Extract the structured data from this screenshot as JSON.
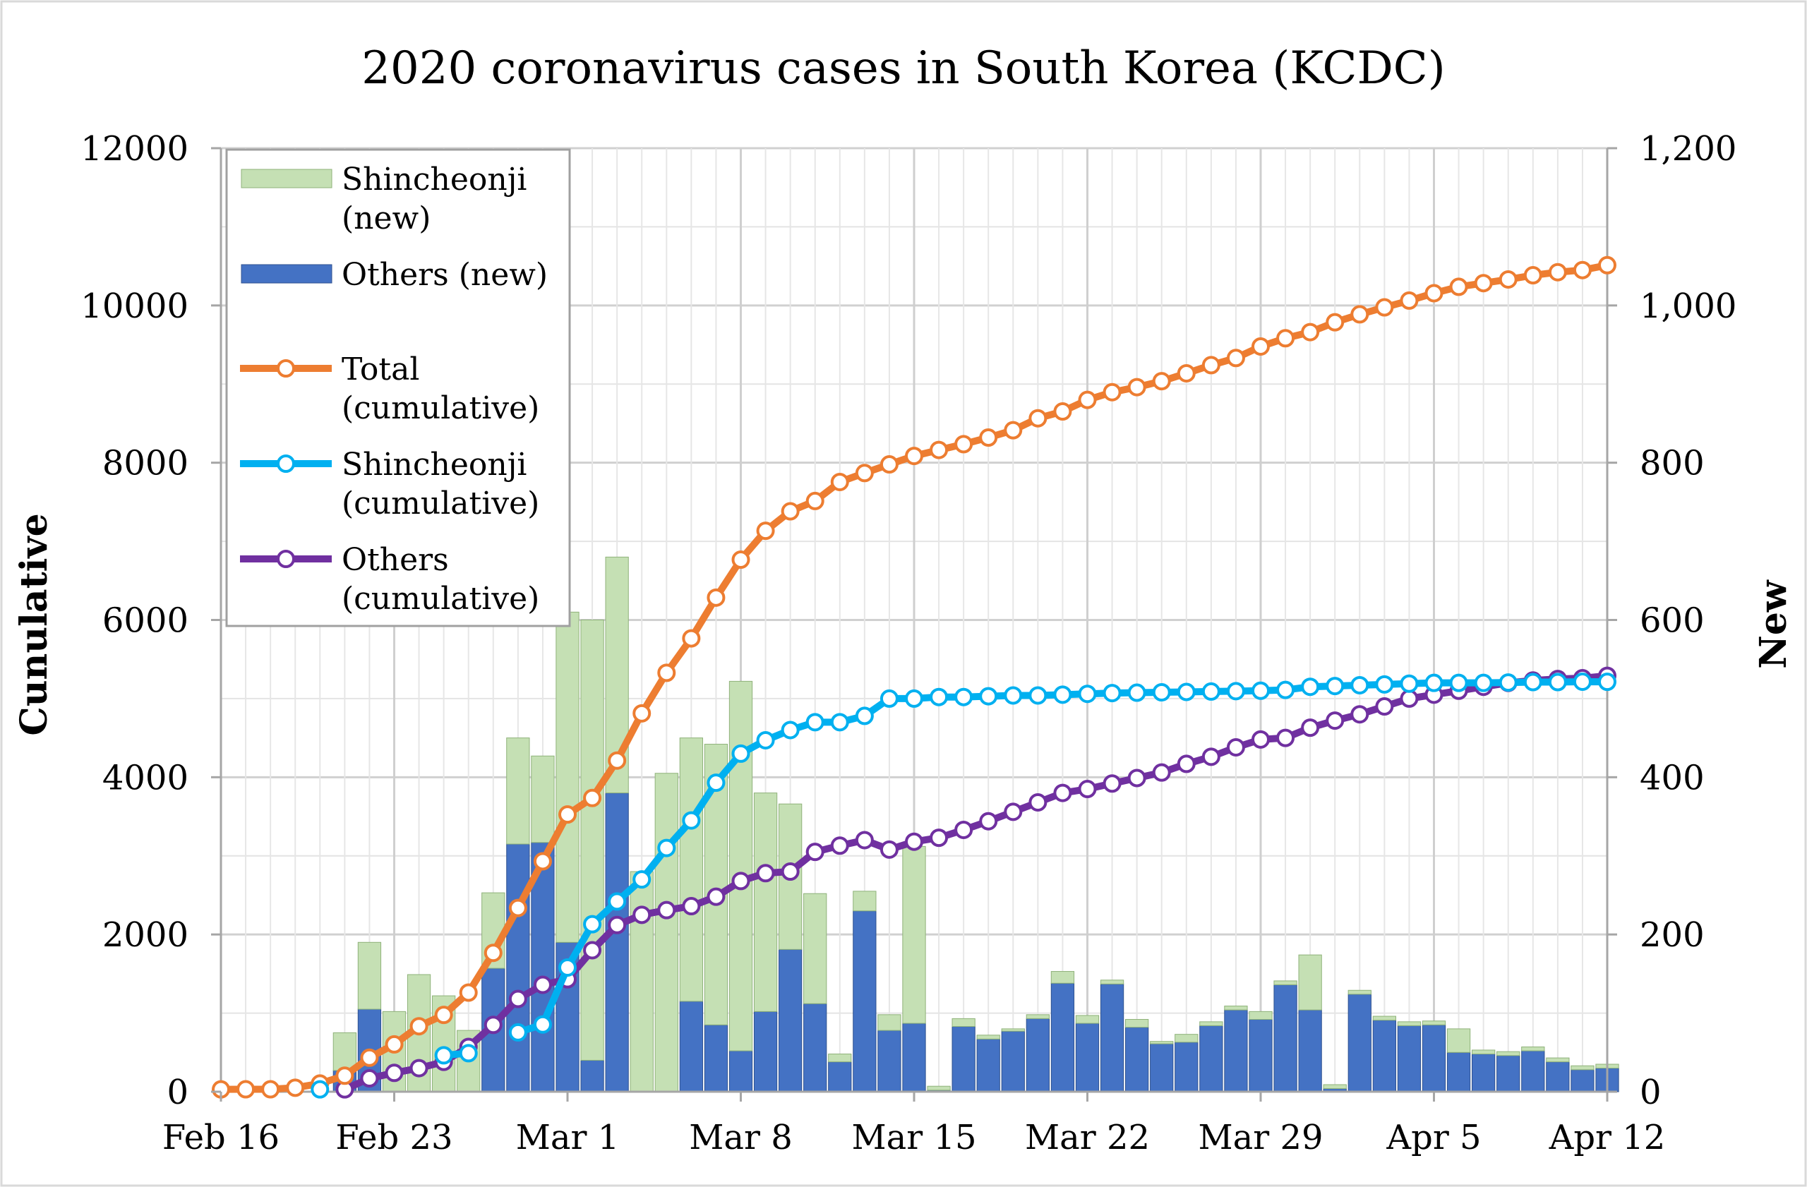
{
  "chart_data": {
    "type": "bar",
    "title": "2020 coronavirus cases in South Korea (KCDC)",
    "ylabel_left": "Cunulative",
    "ylabel_right": "New",
    "ylim_left": [
      0,
      12000
    ],
    "ylim_right": [
      0,
      1200
    ],
    "yticks_left": [
      "0",
      "2000",
      "4000",
      "6000",
      "8000",
      "10000",
      "12000"
    ],
    "yticks_right": [
      "0",
      "200",
      "400",
      "600",
      "800",
      "1,000",
      "1,200"
    ],
    "x_tick_labels": [
      "Feb 16",
      "Feb 23",
      "Mar 1",
      "Mar 8",
      "Mar 15",
      "Mar 22",
      "Mar 29",
      "Apr 5",
      "Apr 12"
    ],
    "grid": true,
    "legend_position": "top-left",
    "legend": [
      {
        "label": "Shincheonji\n(new)",
        "kind": "bar",
        "color": "#c5e0b4"
      },
      {
        "label": "Others (new)",
        "kind": "bar",
        "color": "#4472c4"
      },
      {
        "label": "Total\n(cumulative)",
        "kind": "line",
        "color": "#ed7d31"
      },
      {
        "label": "Shincheonji\n(cumulative)",
        "kind": "line",
        "color": "#00b0f0"
      },
      {
        "label": "Others\n(cumulative)",
        "kind": "line",
        "color": "#7030a0"
      }
    ],
    "x": [
      "Feb 16",
      "Feb 17",
      "Feb 18",
      "Feb 19",
      "Feb 20",
      "Feb 21",
      "Feb 22",
      "Feb 23",
      "Feb 24",
      "Feb 25",
      "Feb 26",
      "Feb 27",
      "Feb 28",
      "Feb 29",
      "Mar 1",
      "Mar 2",
      "Mar 3",
      "Mar 4",
      "Mar 5",
      "Mar 6",
      "Mar 7",
      "Mar 8",
      "Mar 9",
      "Mar 10",
      "Mar 11",
      "Mar 12",
      "Mar 13",
      "Mar 14",
      "Mar 15",
      "Mar 16",
      "Mar 17",
      "Mar 18",
      "Mar 19",
      "Mar 20",
      "Mar 21",
      "Mar 22",
      "Mar 23",
      "Mar 24",
      "Mar 25",
      "Mar 26",
      "Mar 27",
      "Mar 28",
      "Mar 29",
      "Mar 30",
      "Mar 31",
      "Apr 1",
      "Apr 2",
      "Apr 3",
      "Apr 4",
      "Apr 5",
      "Apr 6",
      "Apr 7",
      "Apr 8",
      "Apr 9",
      "Apr 10",
      "Apr 11",
      "Apr 12"
    ],
    "series_bars": [
      {
        "name": "Shincheonji (new)",
        "axis": "right",
        "color": "#c5e0b4",
        "values": [
          0,
          0,
          0,
          0,
          0,
          48,
          85,
          102,
          149,
          122,
          78,
          96,
          135,
          110,
          420,
          560,
          300,
          280,
          405,
          335,
          357,
          470,
          278,
          185,
          140,
          10,
          25,
          20,
          225,
          5,
          10,
          5,
          3,
          5,
          15,
          10,
          5,
          10,
          3,
          10,
          5,
          5,
          10,
          5,
          70,
          5,
          5,
          5,
          5,
          5,
          30,
          5,
          5,
          5,
          5,
          5,
          5
        ]
      },
      {
        "name": "Others (new)",
        "axis": "right",
        "color": "#4472c4",
        "values": [
          0,
          0,
          0,
          0,
          0,
          27,
          105,
          0,
          0,
          0,
          0,
          157,
          315,
          317,
          190,
          40,
          380,
          0,
          0,
          115,
          85,
          52,
          102,
          181,
          112,
          38,
          230,
          78,
          87,
          2,
          83,
          67,
          77,
          93,
          138,
          87,
          137,
          82,
          61,
          63,
          84,
          104,
          92,
          136,
          104,
          4,
          124,
          91,
          84,
          85,
          50,
          48,
          46,
          52,
          38,
          28,
          30
        ]
      }
    ],
    "series_lines": [
      {
        "name": "Total (cumulative)",
        "axis": "left",
        "color": "#ed7d31",
        "values": [
          30,
          31,
          31,
          51,
          104,
          204,
          433,
          602,
          833,
          977,
          1261,
          1766,
          2337,
          2931,
          3526,
          3736,
          4212,
          4812,
          5328,
          5766,
          6284,
          6767,
          7134,
          7382,
          7513,
          7755,
          7869,
          7979,
          8086,
          8162,
          8236,
          8320,
          8413,
          8565,
          8652,
          8799,
          8897,
          8961,
          9037,
          9137,
          9241,
          9332,
          9478,
          9583,
          9661,
          9786,
          9887,
          9976,
          10062,
          10156,
          10237,
          10284,
          10331,
          10384,
          10423,
          10450,
          10512
        ]
      },
      {
        "name": "Shincheonji (cumulative)",
        "axis": "left",
        "color": "#00b0f0",
        "values": [
          null,
          null,
          null,
          null,
          30,
          null,
          null,
          null,
          null,
          463,
          490,
          null,
          755,
          855,
          1580,
          2130,
          2420,
          2700,
          3100,
          3450,
          3930,
          4300,
          4470,
          4600,
          4700,
          4700,
          4780,
          5000,
          5000,
          5020,
          5020,
          5030,
          5040,
          5040,
          5050,
          5060,
          5070,
          5075,
          5080,
          5085,
          5090,
          5095,
          5100,
          5110,
          5150,
          5160,
          5170,
          5180,
          5190,
          5200,
          5200,
          5200,
          5205,
          5210,
          5210,
          5215,
          5213
        ]
      },
      {
        "name": "Others (cumulative)",
        "axis": "left",
        "color": "#7030a0",
        "values": [
          null,
          null,
          null,
          null,
          null,
          30,
          170,
          240,
          300,
          380,
          570,
          850,
          1180,
          1360,
          1430,
          1800,
          2120,
          2250,
          2310,
          2360,
          2480,
          2680,
          2780,
          2800,
          3050,
          3130,
          3200,
          3080,
          3180,
          3230,
          3330,
          3440,
          3560,
          3680,
          3800,
          3850,
          3920,
          3990,
          4060,
          4170,
          4260,
          4380,
          4480,
          4500,
          4630,
          4720,
          4800,
          4900,
          5000,
          5050,
          5100,
          5150,
          5200,
          5230,
          5250,
          5260,
          5290
        ]
      }
    ]
  }
}
